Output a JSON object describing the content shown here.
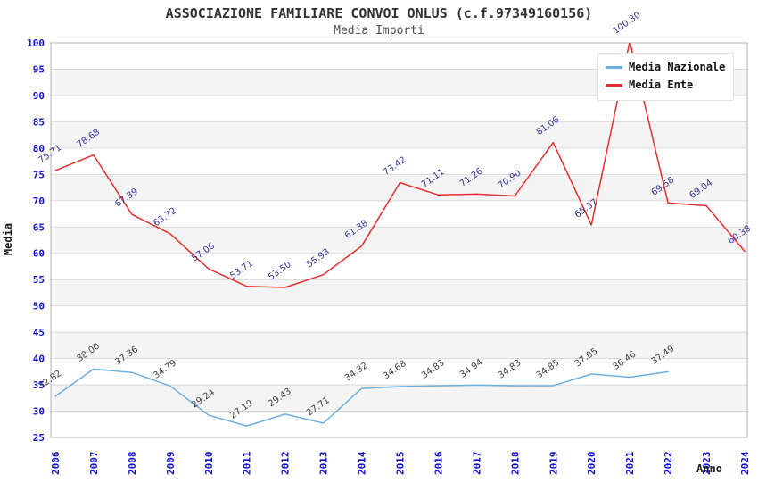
{
  "header": {
    "title": "ASSOCIAZIONE FAMILIARE CONVOI ONLUS (c.f.97349160156)",
    "subtitle": "Media Importi"
  },
  "legend": {
    "position": "top-right",
    "items": [
      {
        "label": "Media Nazionale",
        "color": "#6cb0e0"
      },
      {
        "label": "Media Ente",
        "color": "#e62e2e"
      }
    ]
  },
  "axes": {
    "y_title": "Media",
    "x_title": "Anno",
    "y_ticks": [
      25,
      30,
      35,
      40,
      45,
      50,
      55,
      60,
      65,
      70,
      75,
      80,
      85,
      90,
      95,
      100
    ],
    "x_ticks": [
      "2006",
      "2007",
      "2008",
      "2009",
      "2010",
      "2011",
      "2012",
      "2013",
      "2014",
      "2015",
      "2016",
      "2017",
      "2018",
      "2019",
      "2020",
      "2021",
      "2022",
      "2023",
      "2024"
    ]
  },
  "colors": {
    "tick_label": "#1111cc",
    "axis_title": "#1a1a1a",
    "grid_line": "#d9d9d9",
    "band_fill": "#f4f4f4",
    "plot_border": "#b3b3b3",
    "nazionale_line": "#6cb0e0",
    "ente_line": "#e62e2e",
    "nazionale_value_label": "#3d3d3d",
    "ente_value_label": "#333399"
  },
  "chart_data": {
    "type": "line",
    "title": "ASSOCIAZIONE FAMILIARE CONVOI ONLUS (c.f.97349160156)",
    "subtitle": "Media Importi",
    "xlabel": "Anno",
    "ylabel": "Media",
    "ylim": [
      25,
      100
    ],
    "y_tick_step": 5,
    "grid": "horizontal-bands",
    "legend_position": "top-right",
    "categories": [
      "2006",
      "2007",
      "2008",
      "2009",
      "2010",
      "2011",
      "2012",
      "2013",
      "2014",
      "2015",
      "2016",
      "2017",
      "2018",
      "2019",
      "2020",
      "2021",
      "2022",
      "2023",
      "2024"
    ],
    "series": [
      {
        "name": "Media Nazionale",
        "color": "#6cb0e0",
        "label_color": "#3d3d3d",
        "values": [
          32.82,
          38.0,
          37.36,
          34.79,
          29.24,
          27.19,
          29.43,
          27.71,
          34.32,
          34.68,
          34.83,
          34.94,
          34.83,
          34.85,
          37.05,
          36.46,
          37.49,
          null,
          null
        ],
        "labels": [
          "32.82",
          "38.00",
          "37.36",
          "34.79",
          "29.24",
          "27.19",
          "29.43",
          "27.71",
          "34.32",
          "34.68",
          "34.83",
          "34.94",
          "34.83",
          "34.85",
          "37.05",
          "36.46",
          "37.49",
          null,
          null
        ]
      },
      {
        "name": "Media Ente",
        "color": "#e62e2e",
        "label_color": "#333399",
        "values": [
          75.71,
          78.68,
          67.39,
          63.72,
          57.06,
          53.71,
          53.5,
          55.93,
          61.38,
          73.42,
          71.11,
          71.26,
          70.9,
          81.06,
          65.37,
          100.3,
          69.58,
          69.04,
          60.38
        ],
        "labels": [
          "75.71",
          "78.68",
          "67.39",
          "63.72",
          "57.06",
          "53.71",
          "53.50",
          "55.93",
          "61.38",
          "73.42",
          "71.11",
          "71.26",
          "70.90",
          "81.06",
          "65.37",
          "100.30",
          "69.58",
          "69.04",
          "60.38"
        ]
      }
    ]
  }
}
